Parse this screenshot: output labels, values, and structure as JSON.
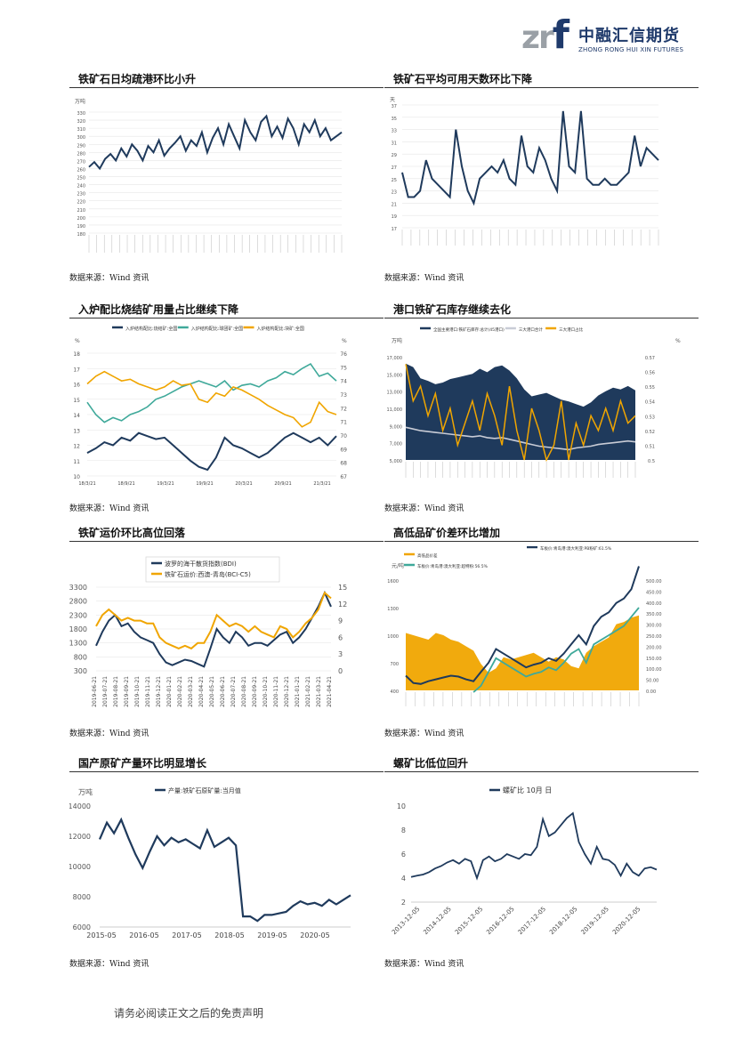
{
  "brand": {
    "mark": "zr",
    "mark_f": "f",
    "name_cn": "中融汇信期货",
    "name_en": "ZHONG RONG HUI XIN FUTURES"
  },
  "footer": "请务必阅读正文之后的免责声明",
  "colors": {
    "navy": "#1f3a5c",
    "orange": "#f0a500",
    "teal": "#3fa99a",
    "gray": "#c9ccd6"
  },
  "panels": [
    {
      "title": "铁矿石日均疏港环比小升",
      "source": "数据来源：Wind 资讯"
    },
    {
      "title": "铁矿石平均可用天数环比下降",
      "source": "数据来源：Wind 资讯"
    },
    {
      "title": "入炉配比烧结矿用量占比继续下降",
      "source": "数据来源：Wind 资讯"
    },
    {
      "title": "港口铁矿石库存继续去化",
      "source": "数据来源：Wind 资讯"
    },
    {
      "title": "铁矿运价环比高位回落",
      "source": "数据来源：Wind 资讯"
    },
    {
      "title": "高低品矿价差环比增加",
      "source": "数据来源：Wind 资讯"
    },
    {
      "title": "国产原矿产量环比明显增长",
      "source": "数据来源：Wind 资讯"
    },
    {
      "title": "螺矿比低位回升",
      "source": "数据来源：Wind 资讯"
    }
  ],
  "chart_data": [
    {
      "type": "line",
      "unit": "万吨",
      "ylim": [
        180,
        330
      ],
      "yticks": [
        "180",
        "190",
        "200",
        "210",
        "220",
        "230",
        "240",
        "250",
        "260",
        "270",
        "280",
        "290",
        "300",
        "310",
        "320",
        "330"
      ],
      "series": [
        {
          "color": "#1f3a5c",
          "values": [
            262,
            268,
            260,
            272,
            278,
            270,
            285,
            275,
            290,
            282,
            270,
            288,
            280,
            295,
            276,
            285,
            292,
            300,
            282,
            295,
            288,
            305,
            280,
            298,
            310,
            290,
            315,
            300,
            285,
            320,
            305,
            295,
            318,
            325,
            300,
            312,
            298,
            322,
            310,
            290,
            315,
            305,
            320,
            300,
            310,
            295,
            300,
            305
          ]
        }
      ]
    },
    {
      "type": "line",
      "unit": "天",
      "ylim": [
        17,
        37
      ],
      "yticks": [
        "17",
        "19",
        "21",
        "23",
        "25",
        "27",
        "29",
        "31",
        "33",
        "35",
        "37"
      ],
      "series": [
        {
          "color": "#1f3a5c",
          "values": [
            26,
            22,
            22,
            23,
            28,
            25,
            24,
            23,
            22,
            33,
            27,
            23,
            21,
            25,
            26,
            27,
            26,
            28,
            25,
            24,
            32,
            27,
            26,
            30,
            28,
            25,
            23,
            36,
            27,
            26,
            36,
            25,
            24,
            24,
            25,
            24,
            24,
            25,
            26,
            32,
            27,
            30,
            29,
            28
          ]
        }
      ]
    },
    {
      "type": "line",
      "legend": [
        "入炉结构配比:烧结矿:全国",
        "入炉结构配比:球团矿:全国",
        "入炉结构配比:块矿:全国"
      ],
      "yleft": [
        "10",
        "11",
        "12",
        "13",
        "14",
        "15",
        "16",
        "17",
        "18"
      ],
      "yright": [
        "67",
        "68",
        "69",
        "70",
        "71",
        "72",
        "73",
        "74",
        "75",
        "76"
      ],
      "xticks": [
        "18/3/21",
        "18/9/21",
        "19/3/21",
        "19/9/21",
        "20/3/21",
        "20/9/21",
        "21/3/21"
      ],
      "series": [
        {
          "name": "入炉结构配比:烧结矿:全国",
          "color": "#1f3a5c",
          "values": [
            11.5,
            11.8,
            12.2,
            12.0,
            12.5,
            12.3,
            12.8,
            12.6,
            12.4,
            12.5,
            12.0,
            11.5,
            11.0,
            10.6,
            10.4,
            11.2,
            12.5,
            12.0,
            11.8,
            11.5,
            11.2,
            11.5,
            12.0,
            12.5,
            12.8,
            12.5,
            12.2,
            12.5,
            12.0,
            12.6
          ]
        },
        {
          "name": "入炉结构配比:球团矿:全国",
          "color": "#3fa99a",
          "values": [
            14.8,
            14.0,
            13.5,
            13.8,
            13.6,
            14.0,
            14.2,
            14.5,
            15.0,
            15.2,
            15.5,
            15.8,
            16.0,
            16.2,
            16.0,
            15.8,
            16.2,
            15.6,
            15.9,
            16.0,
            15.8,
            16.2,
            16.4,
            16.8,
            16.6,
            17.0,
            17.3,
            16.5,
            16.7,
            16.2
          ]
        },
        {
          "name": "入炉结构配比:块矿:全国",
          "color": "#f0a500",
          "values": [
            16.0,
            16.5,
            16.8,
            16.5,
            16.2,
            16.3,
            16.0,
            15.8,
            15.6,
            15.8,
            16.2,
            15.9,
            16.0,
            15.0,
            14.8,
            15.4,
            15.2,
            15.8,
            15.6,
            15.3,
            15.0,
            14.6,
            14.3,
            14.0,
            13.8,
            13.2,
            13.5,
            14.8,
            14.2,
            14.0
          ]
        }
      ]
    },
    {
      "type": "area",
      "unit": "万吨",
      "unit_right": "%",
      "legend": [
        "全国主要港口:铁矿石库存:总计(45港口)",
        "三大港口合计",
        "三大港口占比"
      ],
      "yleft": [
        "5,000",
        "7,000",
        "9,000",
        "11,000",
        "13,000",
        "15,000",
        "17,000"
      ],
      "yright": [
        "0.5",
        "0.51",
        "0.52",
        "0.53",
        "0.54",
        "0.55",
        "0.56",
        "0.57"
      ],
      "series": [
        {
          "name": "全国主要港口:铁矿石库存:总计(45港口)",
          "color": "#1f3a5c",
          "values": [
            16200,
            15800,
            14500,
            14200,
            13800,
            14000,
            14400,
            14600,
            14800,
            15000,
            15600,
            15200,
            15800,
            16000,
            15400,
            14500,
            13200,
            12400,
            12600,
            12800,
            12400,
            12000,
            11800,
            11500,
            11200,
            11700,
            12500,
            13000,
            13400,
            13200,
            13600,
            13100
          ]
        },
        {
          "name": "三大港口合计",
          "color": "#c9ccd6",
          "values": [
            8800,
            8600,
            8400,
            8300,
            8200,
            8100,
            8000,
            7900,
            7800,
            7700,
            7800,
            7600,
            7500,
            7600,
            7400,
            7200,
            7000,
            6800,
            6600,
            6500,
            6400,
            6300,
            6200,
            6400,
            6500,
            6600,
            6800,
            6900,
            7000,
            7100,
            7200,
            7100
          ]
        },
        {
          "name": "三大港口占比",
          "color": "#f0a500",
          "values": [
            0.565,
            0.54,
            0.55,
            0.53,
            0.545,
            0.52,
            0.535,
            0.51,
            0.525,
            0.54,
            0.52,
            0.545,
            0.53,
            0.51,
            0.55,
            0.52,
            0.5,
            0.535,
            0.52,
            0.5,
            0.51,
            0.54,
            0.5,
            0.525,
            0.51,
            0.53,
            0.52,
            0.535,
            0.52,
            0.54,
            0.525,
            0.53
          ]
        }
      ]
    },
    {
      "type": "line",
      "legend": [
        "波罗的海干散货指数(BDI)",
        "铁矿石运价:西澳-青岛(BCI-C5)"
      ],
      "yleft": [
        "300",
        "800",
        "1300",
        "1800",
        "2300",
        "2800",
        "3300"
      ],
      "yright": [
        "0",
        "3",
        "6",
        "9",
        "12",
        "15"
      ],
      "xticks": [
        "2019-06-21",
        "2019-07-21",
        "2019-08-21",
        "2019-09-21",
        "2019-10-21",
        "2019-11-21",
        "2019-12-21",
        "2020-01-21",
        "2020-02-21",
        "2020-03-21",
        "2020-04-21",
        "2020-05-21",
        "2020-06-21",
        "2020-07-21",
        "2020-08-21",
        "2020-09-21",
        "2020-10-21",
        "2020-11-21",
        "2020-12-21",
        "2021-01-21",
        "2021-02-21",
        "2021-03-21",
        "2021-04-21"
      ],
      "series": [
        {
          "name": "波罗的海干散货指数(BDI)",
          "color": "#1f3a5c",
          "values": [
            1200,
            1700,
            2100,
            2300,
            1900,
            2000,
            1700,
            1500,
            1400,
            1300,
            900,
            600,
            500,
            600,
            700,
            650,
            550,
            450,
            1100,
            1800,
            1500,
            1300,
            1700,
            1500,
            1200,
            1300,
            1300,
            1200,
            1400,
            1600,
            1700,
            1300,
            1500,
            1800,
            2200,
            2600,
            3100,
            2600
          ]
        },
        {
          "name": "铁矿石运价:西澳-青岛(BCI-C5)",
          "color": "#f0a500",
          "values": [
            8,
            10,
            11,
            10,
            9,
            9.5,
            9,
            9,
            8.5,
            8.5,
            6,
            5,
            4.5,
            4,
            4.5,
            4,
            5,
            5,
            7,
            10,
            9,
            8,
            8.5,
            8,
            7,
            8,
            7,
            6.5,
            6,
            8,
            7.5,
            6,
            7,
            8.5,
            9.5,
            11,
            14,
            13
          ]
        }
      ]
    },
    {
      "type": "area",
      "unit": "元/吨",
      "legend": [
        "高低品价差",
        "车板价:青岛港:澳大利亚:PB粉矿:61.5%",
        "车板价:青岛港:澳大利亚:超特粉:56.5%"
      ],
      "yleft": [
        "400",
        "700",
        "1000",
        "1300",
        "1600"
      ],
      "yright": [
        "0.00",
        "50.00",
        "100.00",
        "150.00",
        "200.00",
        "250.00",
        "300.00",
        "350.00",
        "400.00",
        "450.00",
        "500.00"
      ],
      "series": [
        {
          "name": "高低品价差",
          "color": "#f0a500",
          "values": [
            260,
            250,
            240,
            230,
            260,
            250,
            230,
            220,
            200,
            180,
            120,
            80,
            100,
            150,
            140,
            150,
            160,
            170,
            150,
            130,
            150,
            140,
            110,
            100,
            170,
            200,
            220,
            240,
            300,
            310,
            330,
            340
          ]
        },
        {
          "name": "车板价:青岛港:澳大利亚:PB粉矿:61.5%",
          "color": "#1f3a5c",
          "values": [
            560,
            480,
            470,
            500,
            520,
            540,
            560,
            550,
            520,
            500,
            600,
            700,
            850,
            800,
            750,
            700,
            650,
            680,
            700,
            750,
            720,
            800,
            900,
            1000,
            900,
            1100,
            1200,
            1250,
            1350,
            1400,
            1500,
            1750
          ]
        },
        {
          "name": "车板价:青岛港:澳大利亚:超特粉:56.5%",
          "color": "#3fa99a",
          "values": [
            null,
            null,
            null,
            null,
            null,
            null,
            null,
            null,
            null,
            380,
            450,
            600,
            750,
            700,
            650,
            600,
            550,
            580,
            600,
            650,
            620,
            700,
            800,
            850,
            700,
            900,
            950,
            1000,
            1050,
            1100,
            1200,
            1300
          ]
        }
      ]
    },
    {
      "type": "line",
      "unit": "万吨",
      "legend": [
        "产量:铁矿石原矿量:当月值"
      ],
      "yleft": [
        "6000",
        "8000",
        "10000",
        "12000",
        "14000"
      ],
      "xticks": [
        "2015-05",
        "2016-05",
        "2017-05",
        "2018-05",
        "2019-05",
        "2020-05"
      ],
      "series": [
        {
          "name": "产量:铁矿石原矿量:当月值",
          "color": "#1f3a5c",
          "values": [
            11800,
            12900,
            12200,
            13100,
            11900,
            10800,
            9900,
            11000,
            12000,
            11400,
            11900,
            11600,
            11800,
            11500,
            11200,
            12400,
            11300,
            11600,
            11900,
            11400,
            6700,
            6700,
            6400,
            6800,
            6800,
            6900,
            7000,
            7400,
            7700,
            7500,
            7600,
            7400,
            7800,
            7500,
            7800,
            8100
          ]
        }
      ]
    },
    {
      "type": "line",
      "legend": [
        "螺矿比 10月 日"
      ],
      "yleft": [
        "2",
        "4",
        "6",
        "8",
        "10"
      ],
      "xticks": [
        "2013-12-05",
        "2014-12-05",
        "2015-12-05",
        "2016-12-05",
        "2017-12-05",
        "2018-12-05",
        "2019-12-05",
        "2020-12-05"
      ],
      "series": [
        {
          "name": "螺矿比 10月 日",
          "color": "#1f3a5c",
          "values": [
            4.1,
            4.2,
            4.3,
            4.5,
            4.8,
            5.0,
            5.3,
            5.5,
            5.2,
            5.6,
            5.4,
            4.0,
            5.5,
            5.8,
            5.4,
            5.6,
            6.0,
            5.8,
            5.6,
            6.0,
            5.9,
            6.6,
            8.9,
            7.5,
            7.8,
            8.4,
            9.0,
            9.4,
            7.0,
            6.0,
            5.2,
            6.6,
            5.6,
            5.5,
            5.1,
            4.2,
            5.2,
            4.5,
            4.2,
            4.8,
            4.9,
            4.7
          ]
        }
      ]
    }
  ]
}
